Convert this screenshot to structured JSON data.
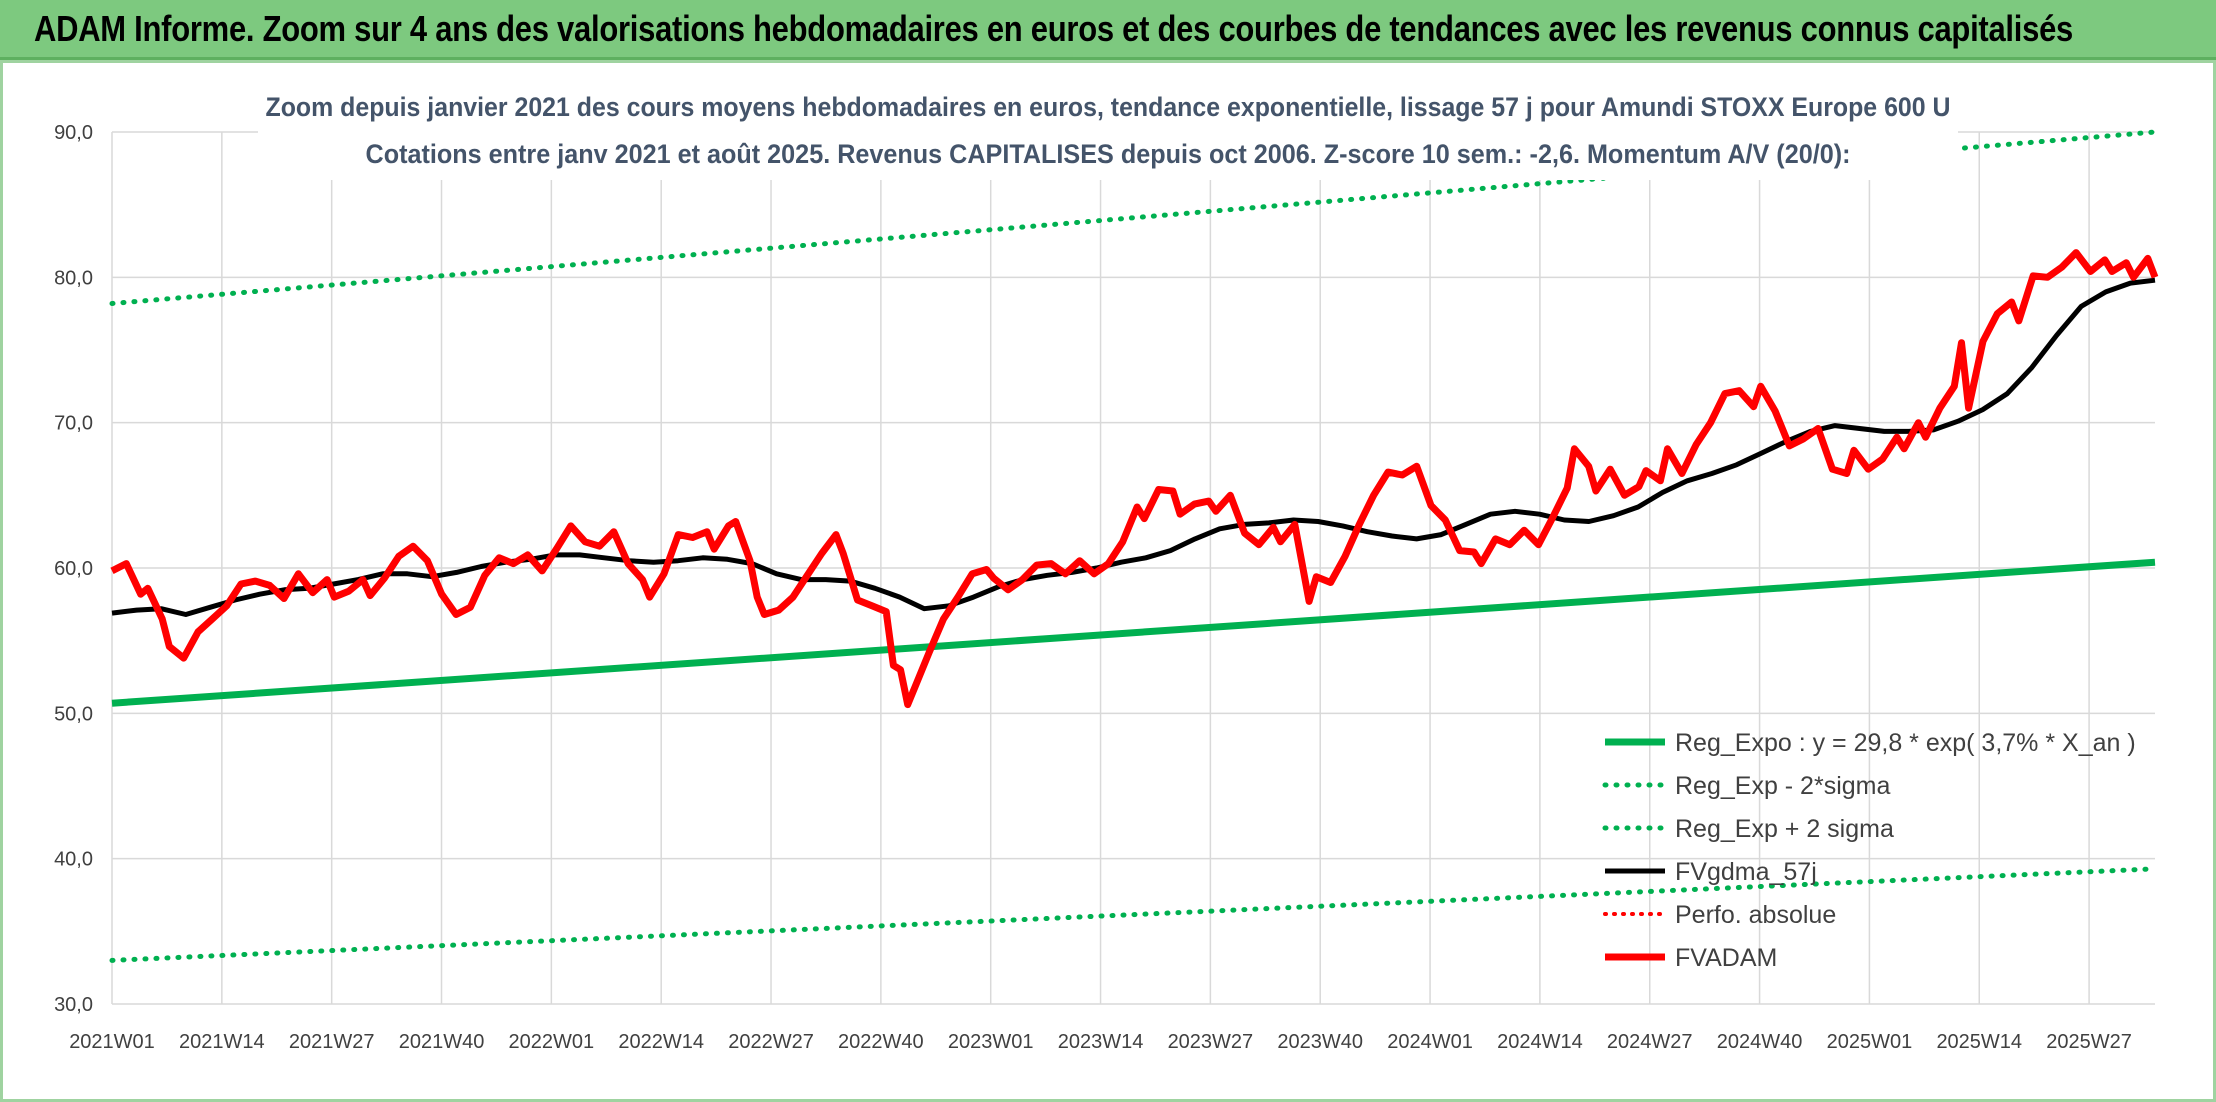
{
  "banner": {
    "title": "ADAM Informe. Zoom sur 4 ans des valorisations hebdomadaires en euros et des courbes de tendances avec les revenus connus capitalisés"
  },
  "colors": {
    "banner_bg": "#7dc97f",
    "regression": "#00b050",
    "sigma_bands": "#00b050",
    "smoothed": "#000000",
    "price": "#ff0000",
    "perf_absolue": "#ff0000"
  },
  "chart_data": {
    "type": "line",
    "title": "Zoom depuis janvier 2021 des cours moyens hebdomadaires en euros, tendance exponentielle, lissage 57 j pour Amundi STOXX Europe 600 U",
    "subtitle": "Cotations entre janv 2021 et août 2025. Revenus CAPITALISES depuis oct 2006. Z-score 10 sem.: -2,6. Momentum A/V (20/0):",
    "ylim": [
      30,
      90
    ],
    "yticks": [
      "30,0",
      "40,0",
      "50,0",
      "60,0",
      "70,0",
      "80,0",
      "90,0"
    ],
    "xticks": [
      "2021W01",
      "2021W14",
      "2021W27",
      "2021W40",
      "2022W01",
      "2022W14",
      "2022W27",
      "2022W40",
      "2023W01",
      "2023W14",
      "2023W27",
      "2023W40",
      "2024W01",
      "2024W14",
      "2024W27",
      "2024W40",
      "2025W01",
      "2025W14",
      "2025W27"
    ],
    "week_count": 243,
    "grid": true,
    "legend_position": "bottom-right",
    "series": [
      {
        "name": "Reg_Expo : y = 29,8 * exp( 3,7% *  X_an )",
        "style": "solid-thick",
        "points": [
          [
            0,
            50.7
          ],
          [
            242,
            60.4
          ]
        ]
      },
      {
        "name": "Reg_Exp - 2*sigma",
        "style": "dotted",
        "points": [
          [
            0,
            33.0
          ],
          [
            242,
            39.3
          ]
        ]
      },
      {
        "name": "Reg_Exp + 2 sigma",
        "style": "dotted",
        "points": [
          [
            0,
            78.2
          ],
          [
            242,
            90.0
          ]
        ]
      },
      {
        "name": "FVgdma_57j",
        "style": "solid",
        "points": [
          [
            0,
            56.9
          ],
          [
            3,
            57.1
          ],
          [
            6,
            57.2
          ],
          [
            9,
            56.8
          ],
          [
            12,
            57.3
          ],
          [
            15,
            57.8
          ],
          [
            18,
            58.2
          ],
          [
            21,
            58.5
          ],
          [
            24,
            58.6
          ],
          [
            27,
            58.9
          ],
          [
            30,
            59.2
          ],
          [
            33,
            59.6
          ],
          [
            36,
            59.6
          ],
          [
            39,
            59.4
          ],
          [
            42,
            59.7
          ],
          [
            45,
            60.1
          ],
          [
            48,
            60.4
          ],
          [
            51,
            60.6
          ],
          [
            54,
            60.9
          ],
          [
            57,
            60.9
          ],
          [
            60,
            60.7
          ],
          [
            63,
            60.5
          ],
          [
            66,
            60.4
          ],
          [
            69,
            60.5
          ],
          [
            72,
            60.7
          ],
          [
            75,
            60.6
          ],
          [
            78,
            60.3
          ],
          [
            81,
            59.6
          ],
          [
            84,
            59.2
          ],
          [
            87,
            59.2
          ],
          [
            90,
            59.1
          ],
          [
            93,
            58.6
          ],
          [
            96,
            58.0
          ],
          [
            99,
            57.2
          ],
          [
            102,
            57.4
          ],
          [
            105,
            58.0
          ],
          [
            108,
            58.7
          ],
          [
            111,
            59.2
          ],
          [
            114,
            59.5
          ],
          [
            117,
            59.7
          ],
          [
            120,
            60.0
          ],
          [
            123,
            60.4
          ],
          [
            126,
            60.7
          ],
          [
            129,
            61.2
          ],
          [
            132,
            62.0
          ],
          [
            135,
            62.7
          ],
          [
            138,
            63.0
          ],
          [
            141,
            63.1
          ],
          [
            144,
            63.3
          ],
          [
            147,
            63.2
          ],
          [
            150,
            62.9
          ],
          [
            153,
            62.5
          ],
          [
            156,
            62.2
          ],
          [
            159,
            62.0
          ],
          [
            162,
            62.3
          ],
          [
            165,
            63.0
          ],
          [
            168,
            63.7
          ],
          [
            171,
            63.9
          ],
          [
            174,
            63.7
          ],
          [
            177,
            63.3
          ],
          [
            180,
            63.2
          ],
          [
            183,
            63.6
          ],
          [
            186,
            64.2
          ],
          [
            189,
            65.2
          ],
          [
            192,
            66.0
          ],
          [
            195,
            66.5
          ],
          [
            198,
            67.1
          ],
          [
            201,
            67.9
          ],
          [
            204,
            68.7
          ],
          [
            207,
            69.4
          ],
          [
            210,
            69.8
          ],
          [
            213,
            69.6
          ],
          [
            216,
            69.4
          ],
          [
            219,
            69.4
          ],
          [
            222,
            69.5
          ],
          [
            225,
            70.1
          ],
          [
            228,
            70.9
          ],
          [
            231,
            72.0
          ],
          [
            234,
            73.8
          ],
          [
            237,
            76.0
          ],
          [
            240,
            78.0
          ],
          [
            243,
            79.0
          ],
          [
            246,
            79.6
          ],
          [
            249,
            79.8
          ]
        ]
      },
      {
        "name": "Perfo. absolue",
        "style": "dotted",
        "points": []
      },
      {
        "name": "FVADAM",
        "style": "solid-thick",
        "points": [
          [
            0,
            59.8
          ],
          [
            2,
            60.3
          ],
          [
            4,
            58.2
          ],
          [
            5,
            58.6
          ],
          [
            7,
            56.5
          ],
          [
            8,
            54.6
          ],
          [
            10,
            53.8
          ],
          [
            12,
            55.6
          ],
          [
            14,
            56.5
          ],
          [
            16,
            57.4
          ],
          [
            18,
            58.9
          ],
          [
            20,
            59.1
          ],
          [
            22,
            58.8
          ],
          [
            24,
            57.9
          ],
          [
            26,
            59.6
          ],
          [
            28,
            58.3
          ],
          [
            30,
            59.2
          ],
          [
            31,
            58.0
          ],
          [
            33,
            58.4
          ],
          [
            35,
            59.2
          ],
          [
            36,
            58.1
          ],
          [
            38,
            59.3
          ],
          [
            40,
            60.8
          ],
          [
            42,
            61.5
          ],
          [
            44,
            60.5
          ],
          [
            46,
            58.2
          ],
          [
            48,
            56.8
          ],
          [
            50,
            57.3
          ],
          [
            52,
            59.5
          ],
          [
            54,
            60.7
          ],
          [
            56,
            60.3
          ],
          [
            58,
            60.9
          ],
          [
            60,
            59.8
          ],
          [
            62,
            61.3
          ],
          [
            64,
            62.9
          ],
          [
            66,
            61.8
          ],
          [
            68,
            61.5
          ],
          [
            70,
            62.5
          ],
          [
            72,
            60.3
          ],
          [
            74,
            59.2
          ],
          [
            75,
            58.0
          ],
          [
            77,
            59.6
          ],
          [
            79,
            62.3
          ],
          [
            81,
            62.1
          ],
          [
            83,
            62.5
          ],
          [
            84,
            61.3
          ],
          [
            86,
            62.9
          ],
          [
            87,
            63.2
          ],
          [
            89,
            60.5
          ],
          [
            90,
            58.0
          ],
          [
            91,
            56.8
          ],
          [
            93,
            57.1
          ],
          [
            95,
            58.0
          ],
          [
            97,
            59.5
          ],
          [
            99,
            61.0
          ],
          [
            101,
            62.3
          ],
          [
            102,
            61.0
          ],
          [
            104,
            57.8
          ],
          [
            106,
            57.4
          ],
          [
            108,
            57.0
          ],
          [
            109,
            53.3
          ],
          [
            110,
            53.0
          ],
          [
            111,
            50.6
          ],
          [
            112,
            51.8
          ],
          [
            114,
            54.2
          ],
          [
            116,
            56.5
          ],
          [
            118,
            58.0
          ],
          [
            120,
            59.6
          ],
          [
            122,
            59.9
          ],
          [
            123,
            59.3
          ],
          [
            125,
            58.5
          ],
          [
            127,
            59.2
          ],
          [
            129,
            60.2
          ],
          [
            131,
            60.3
          ],
          [
            133,
            59.6
          ],
          [
            135,
            60.5
          ],
          [
            137,
            59.6
          ],
          [
            139,
            60.3
          ],
          [
            141,
            61.8
          ],
          [
            143,
            64.2
          ],
          [
            144,
            63.4
          ],
          [
            146,
            65.4
          ],
          [
            148,
            65.3
          ],
          [
            149,
            63.7
          ],
          [
            151,
            64.4
          ],
          [
            153,
            64.6
          ],
          [
            154,
            63.9
          ],
          [
            156,
            65.0
          ],
          [
            158,
            62.4
          ],
          [
            160,
            61.6
          ],
          [
            162,
            62.8
          ],
          [
            163,
            61.8
          ],
          [
            165,
            63.0
          ],
          [
            167,
            57.7
          ],
          [
            168,
            59.4
          ],
          [
            170,
            59.0
          ],
          [
            172,
            60.8
          ],
          [
            174,
            63.0
          ],
          [
            176,
            65.0
          ],
          [
            178,
            66.6
          ],
          [
            180,
            66.4
          ],
          [
            182,
            67.0
          ],
          [
            184,
            64.3
          ],
          [
            186,
            63.3
          ],
          [
            188,
            61.2
          ],
          [
            190,
            61.1
          ],
          [
            191,
            60.3
          ],
          [
            193,
            62.0
          ],
          [
            195,
            61.6
          ],
          [
            197,
            62.6
          ],
          [
            199,
            61.6
          ],
          [
            201,
            63.5
          ],
          [
            203,
            65.5
          ],
          [
            204,
            68.2
          ],
          [
            206,
            67.0
          ],
          [
            207,
            65.3
          ],
          [
            209,
            66.8
          ],
          [
            211,
            65.0
          ],
          [
            213,
            65.6
          ],
          [
            214,
            66.7
          ],
          [
            216,
            66.0
          ],
          [
            217,
            68.2
          ],
          [
            219,
            66.5
          ],
          [
            221,
            68.5
          ],
          [
            223,
            70.0
          ],
          [
            225,
            72.0
          ],
          [
            227,
            72.2
          ],
          [
            229,
            71.1
          ],
          [
            230,
            72.5
          ],
          [
            232,
            70.8
          ],
          [
            234,
            68.4
          ],
          [
            236,
            68.9
          ],
          [
            238,
            69.6
          ],
          [
            240,
            66.8
          ],
          [
            242,
            66.5
          ],
          [
            243,
            68.1
          ],
          [
            245,
            66.8
          ],
          [
            247,
            67.5
          ],
          [
            249,
            69.0
          ],
          [
            250,
            68.2
          ],
          [
            252,
            70.0
          ],
          [
            253,
            69.0
          ],
          [
            255,
            71.0
          ],
          [
            257,
            72.5
          ],
          [
            258,
            75.5
          ],
          [
            259,
            71.0
          ],
          [
            261,
            75.6
          ],
          [
            263,
            77.5
          ],
          [
            265,
            78.3
          ],
          [
            266,
            77.0
          ],
          [
            268,
            80.1
          ],
          [
            270,
            80.0
          ],
          [
            272,
            80.7
          ],
          [
            274,
            81.7
          ],
          [
            276,
            80.4
          ],
          [
            278,
            81.2
          ],
          [
            279,
            80.4
          ],
          [
            281,
            81.0
          ],
          [
            282,
            80.0
          ],
          [
            284,
            81.3
          ],
          [
            285,
            80.0
          ]
        ]
      }
    ]
  }
}
